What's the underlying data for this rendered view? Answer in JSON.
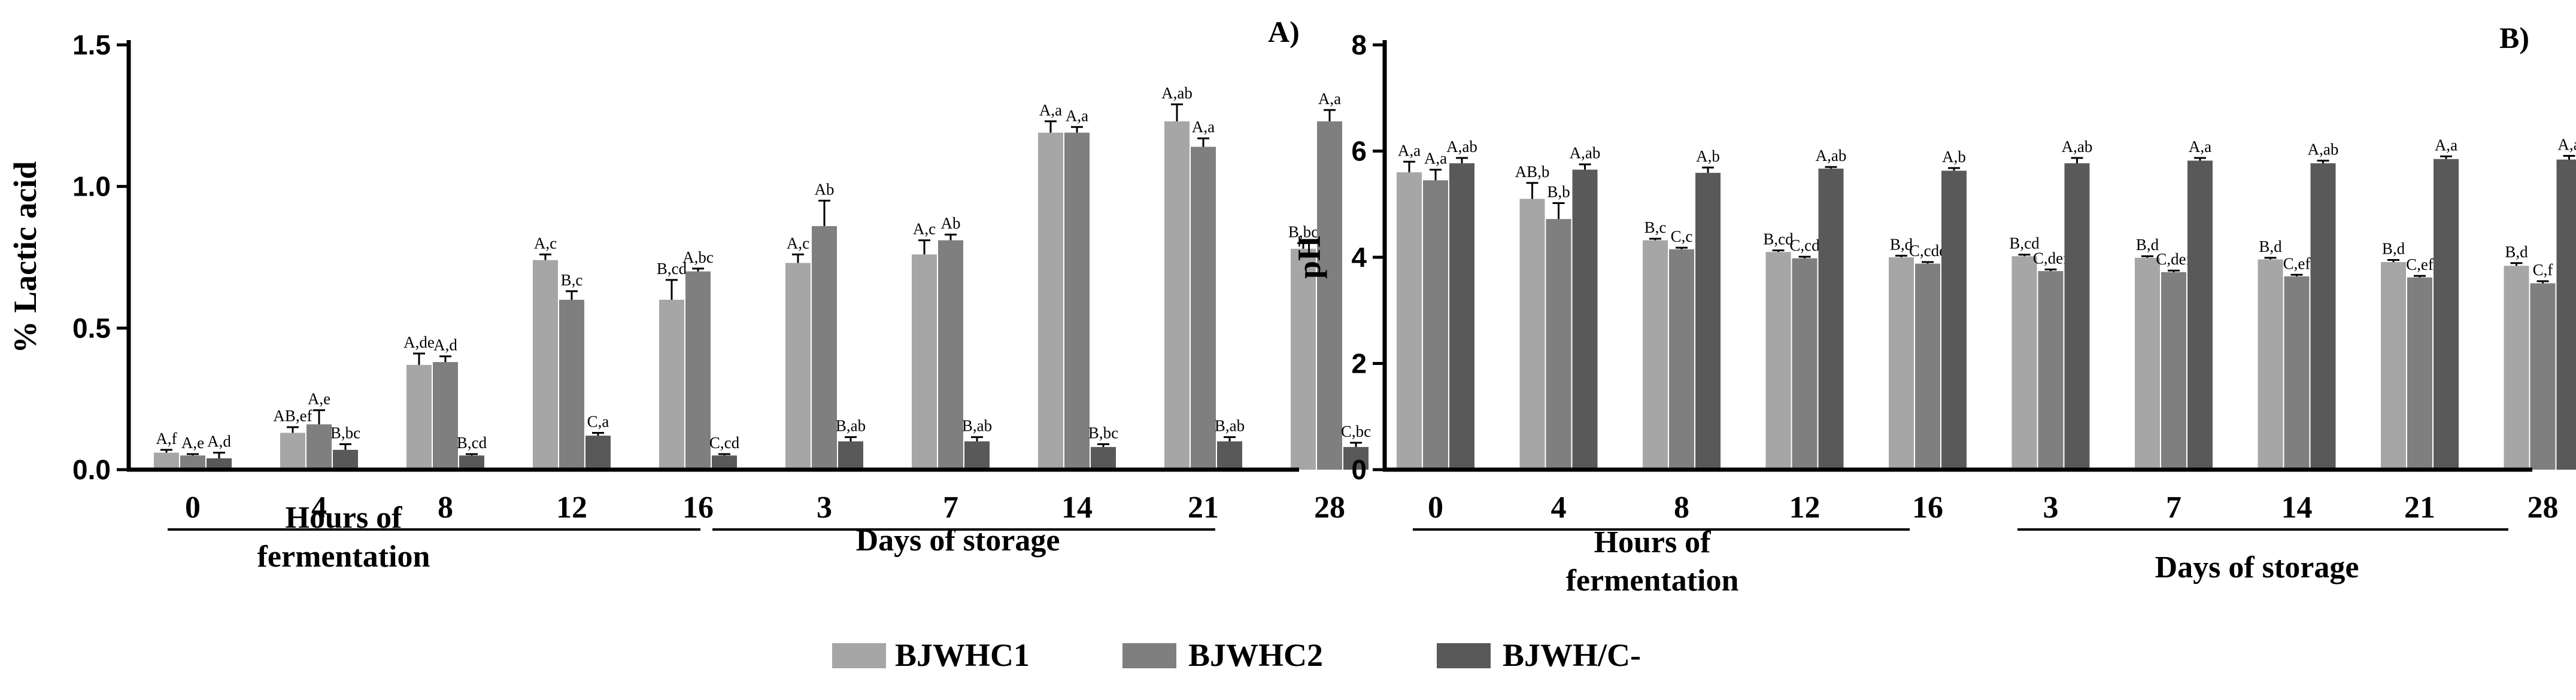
{
  "colors": {
    "BJWHC1": "#a6a6a6",
    "BJWHC2": "#7f7f7f",
    "BJWH/C-": "#595959"
  },
  "legend": {
    "placement": "bottom-center",
    "items": [
      "BJWHC1",
      "BJWHC2",
      "BJWH/C-"
    ]
  },
  "chart_data": [
    {
      "type": "bar",
      "panel_label": "A)",
      "ylabel": "% Lactic acid",
      "ylim": [
        0,
        1.5
      ],
      "yticks": [
        "0.0",
        "0.5",
        "1.0",
        "1.5"
      ],
      "categories": [
        "0",
        "4",
        "8",
        "12",
        "16",
        "3",
        "7",
        "14",
        "21",
        "28"
      ],
      "groups": [
        {
          "label_lines": [
            "Hours of",
            "fermentation"
          ],
          "categories": [
            "0",
            "4",
            "8",
            "12",
            "16"
          ]
        },
        {
          "label_lines": [
            "Days of storage"
          ],
          "categories": [
            "3",
            "7",
            "14",
            "21",
            "28"
          ]
        }
      ],
      "series": [
        {
          "name": "BJWHC1",
          "values": [
            0.06,
            0.13,
            0.37,
            0.74,
            0.6,
            0.73,
            0.76,
            1.19,
            1.23,
            0.78
          ],
          "errors": [
            0.01,
            0.02,
            0.04,
            0.02,
            0.07,
            0.03,
            0.05,
            0.04,
            0.06,
            0.02
          ],
          "labels": [
            "A,f",
            "AB,ef",
            "A,de",
            "A,c",
            "B,cd",
            "A,c",
            "A,c",
            "A,a",
            "A,ab",
            "B,bc"
          ]
        },
        {
          "name": "BJWHC2",
          "values": [
            0.05,
            0.16,
            0.38,
            0.6,
            0.7,
            0.86,
            0.81,
            1.19,
            1.14,
            1.23
          ],
          "errors": [
            0.005,
            0.05,
            0.02,
            0.03,
            0.01,
            0.09,
            0.02,
            0.02,
            0.03,
            0.04
          ],
          "labels": [
            "A,e",
            "A,e",
            "A,d",
            "B,c",
            "A,bc",
            "Ab",
            "Ab",
            "A,a",
            "A,a",
            "A,a"
          ]
        },
        {
          "name": "BJWH/C-",
          "values": [
            0.04,
            0.07,
            0.05,
            0.12,
            0.05,
            0.1,
            0.1,
            0.08,
            0.1,
            0.08
          ],
          "errors": [
            0.02,
            0.02,
            0.005,
            0.01,
            0.005,
            0.015,
            0.015,
            0.01,
            0.015,
            0.015
          ],
          "labels": [
            "A,d",
            "B,bc",
            "B,cd",
            "C,a",
            "C,cd",
            "B,ab",
            "B,ab",
            "B,bc",
            "B,ab",
            "C,bc"
          ]
        }
      ]
    },
    {
      "type": "bar",
      "panel_label": "B)",
      "ylabel": "pH",
      "ylim": [
        0,
        8
      ],
      "yticks": [
        "0",
        "2",
        "4",
        "6",
        "8"
      ],
      "categories": [
        "0",
        "4",
        "8",
        "12",
        "16",
        "3",
        "7",
        "14",
        "21",
        "28"
      ],
      "groups": [
        {
          "label_lines": [
            "Hours of",
            "fermentation"
          ],
          "categories": [
            "0",
            "4",
            "8",
            "12",
            "16"
          ]
        },
        {
          "label_lines": [
            "Days of storage"
          ],
          "categories": [
            "3",
            "7",
            "14",
            "21",
            "28"
          ]
        }
      ],
      "series": [
        {
          "name": "BJWHC1",
          "values": [
            5.6,
            5.1,
            4.32,
            4.1,
            4.0,
            4.02,
            3.99,
            3.96,
            3.91,
            3.84
          ],
          "errors": [
            0.2,
            0.3,
            0.03,
            0.03,
            0.03,
            0.03,
            0.03,
            0.03,
            0.04,
            0.05
          ],
          "labels": [
            "A,a",
            "AB,b",
            "B,c",
            "B,cd",
            "B,d",
            "B,cd",
            "B,d",
            "B,d",
            "B,d",
            "B,d"
          ]
        },
        {
          "name": "BJWHC2",
          "values": [
            5.45,
            4.72,
            4.15,
            3.98,
            3.88,
            3.74,
            3.72,
            3.64,
            3.62,
            3.51
          ],
          "errors": [
            0.2,
            0.3,
            0.03,
            0.03,
            0.03,
            0.03,
            0.03,
            0.03,
            0.03,
            0.04
          ],
          "labels": [
            "A,a",
            "B,b",
            "C,c",
            "C,cd",
            "C,cde",
            "C,def",
            "C,def",
            "C,ef",
            "C,ef",
            "C,f"
          ]
        },
        {
          "name": "BJWH/C-",
          "values": [
            5.77,
            5.65,
            5.59,
            5.67,
            5.63,
            5.77,
            5.82,
            5.77,
            5.85,
            5.84
          ],
          "errors": [
            0.1,
            0.1,
            0.1,
            0.03,
            0.05,
            0.1,
            0.05,
            0.05,
            0.05,
            0.07
          ],
          "labels": [
            "A,ab",
            "A,ab",
            "A,b",
            "A,ab",
            "A,b",
            "A,ab",
            "A,a",
            "A,ab",
            "A,a",
            "A,a"
          ]
        }
      ]
    }
  ]
}
